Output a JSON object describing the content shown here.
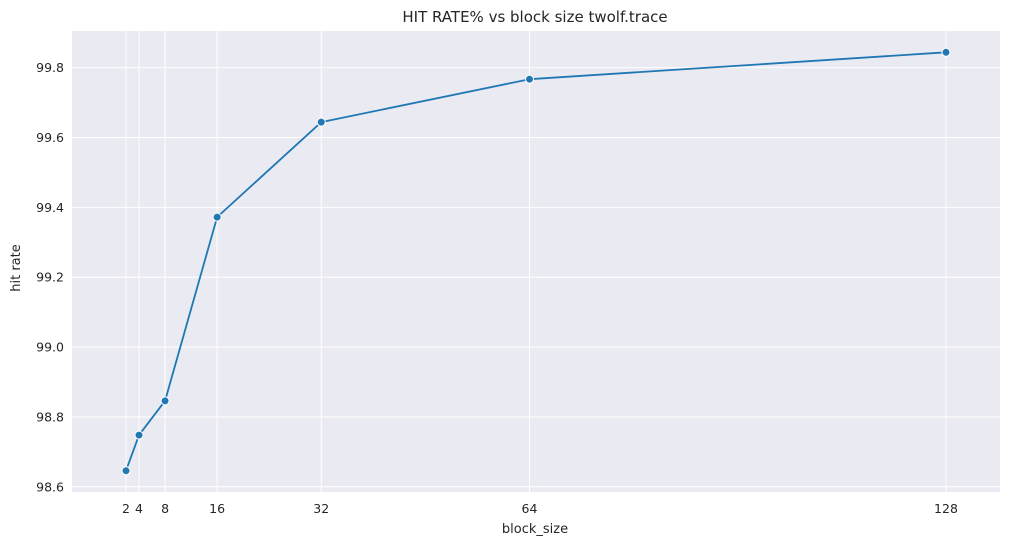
{
  "chart_data": {
    "type": "line",
    "title": "HIT RATE% vs block size twolf.trace",
    "xlabel": "block_size",
    "ylabel": "hit rate",
    "x": [
      2,
      4,
      8,
      16,
      32,
      64,
      128
    ],
    "series": [
      {
        "values": [
          98.646,
          98.748,
          98.846,
          99.372,
          99.644,
          99.767,
          99.844
        ],
        "color": "#1f77b4",
        "marker": "circle"
      }
    ],
    "xticks": [
      2,
      4,
      8,
      16,
      32,
      64,
      128
    ],
    "yticks": [
      98.6,
      98.8,
      99.0,
      99.2,
      99.4,
      99.6,
      99.8
    ],
    "ytick_labels": [
      "98.6",
      "98.8",
      "99.0",
      "99.2",
      "99.4",
      "99.6",
      "99.8"
    ],
    "xlim": [
      -6.3,
      136.3
    ],
    "ylim": [
      98.585,
      99.905
    ],
    "grid": true,
    "style": {
      "background": "#eaeaf2",
      "grid_color": "#ffffff",
      "line_color": "#1f77b4"
    }
  }
}
